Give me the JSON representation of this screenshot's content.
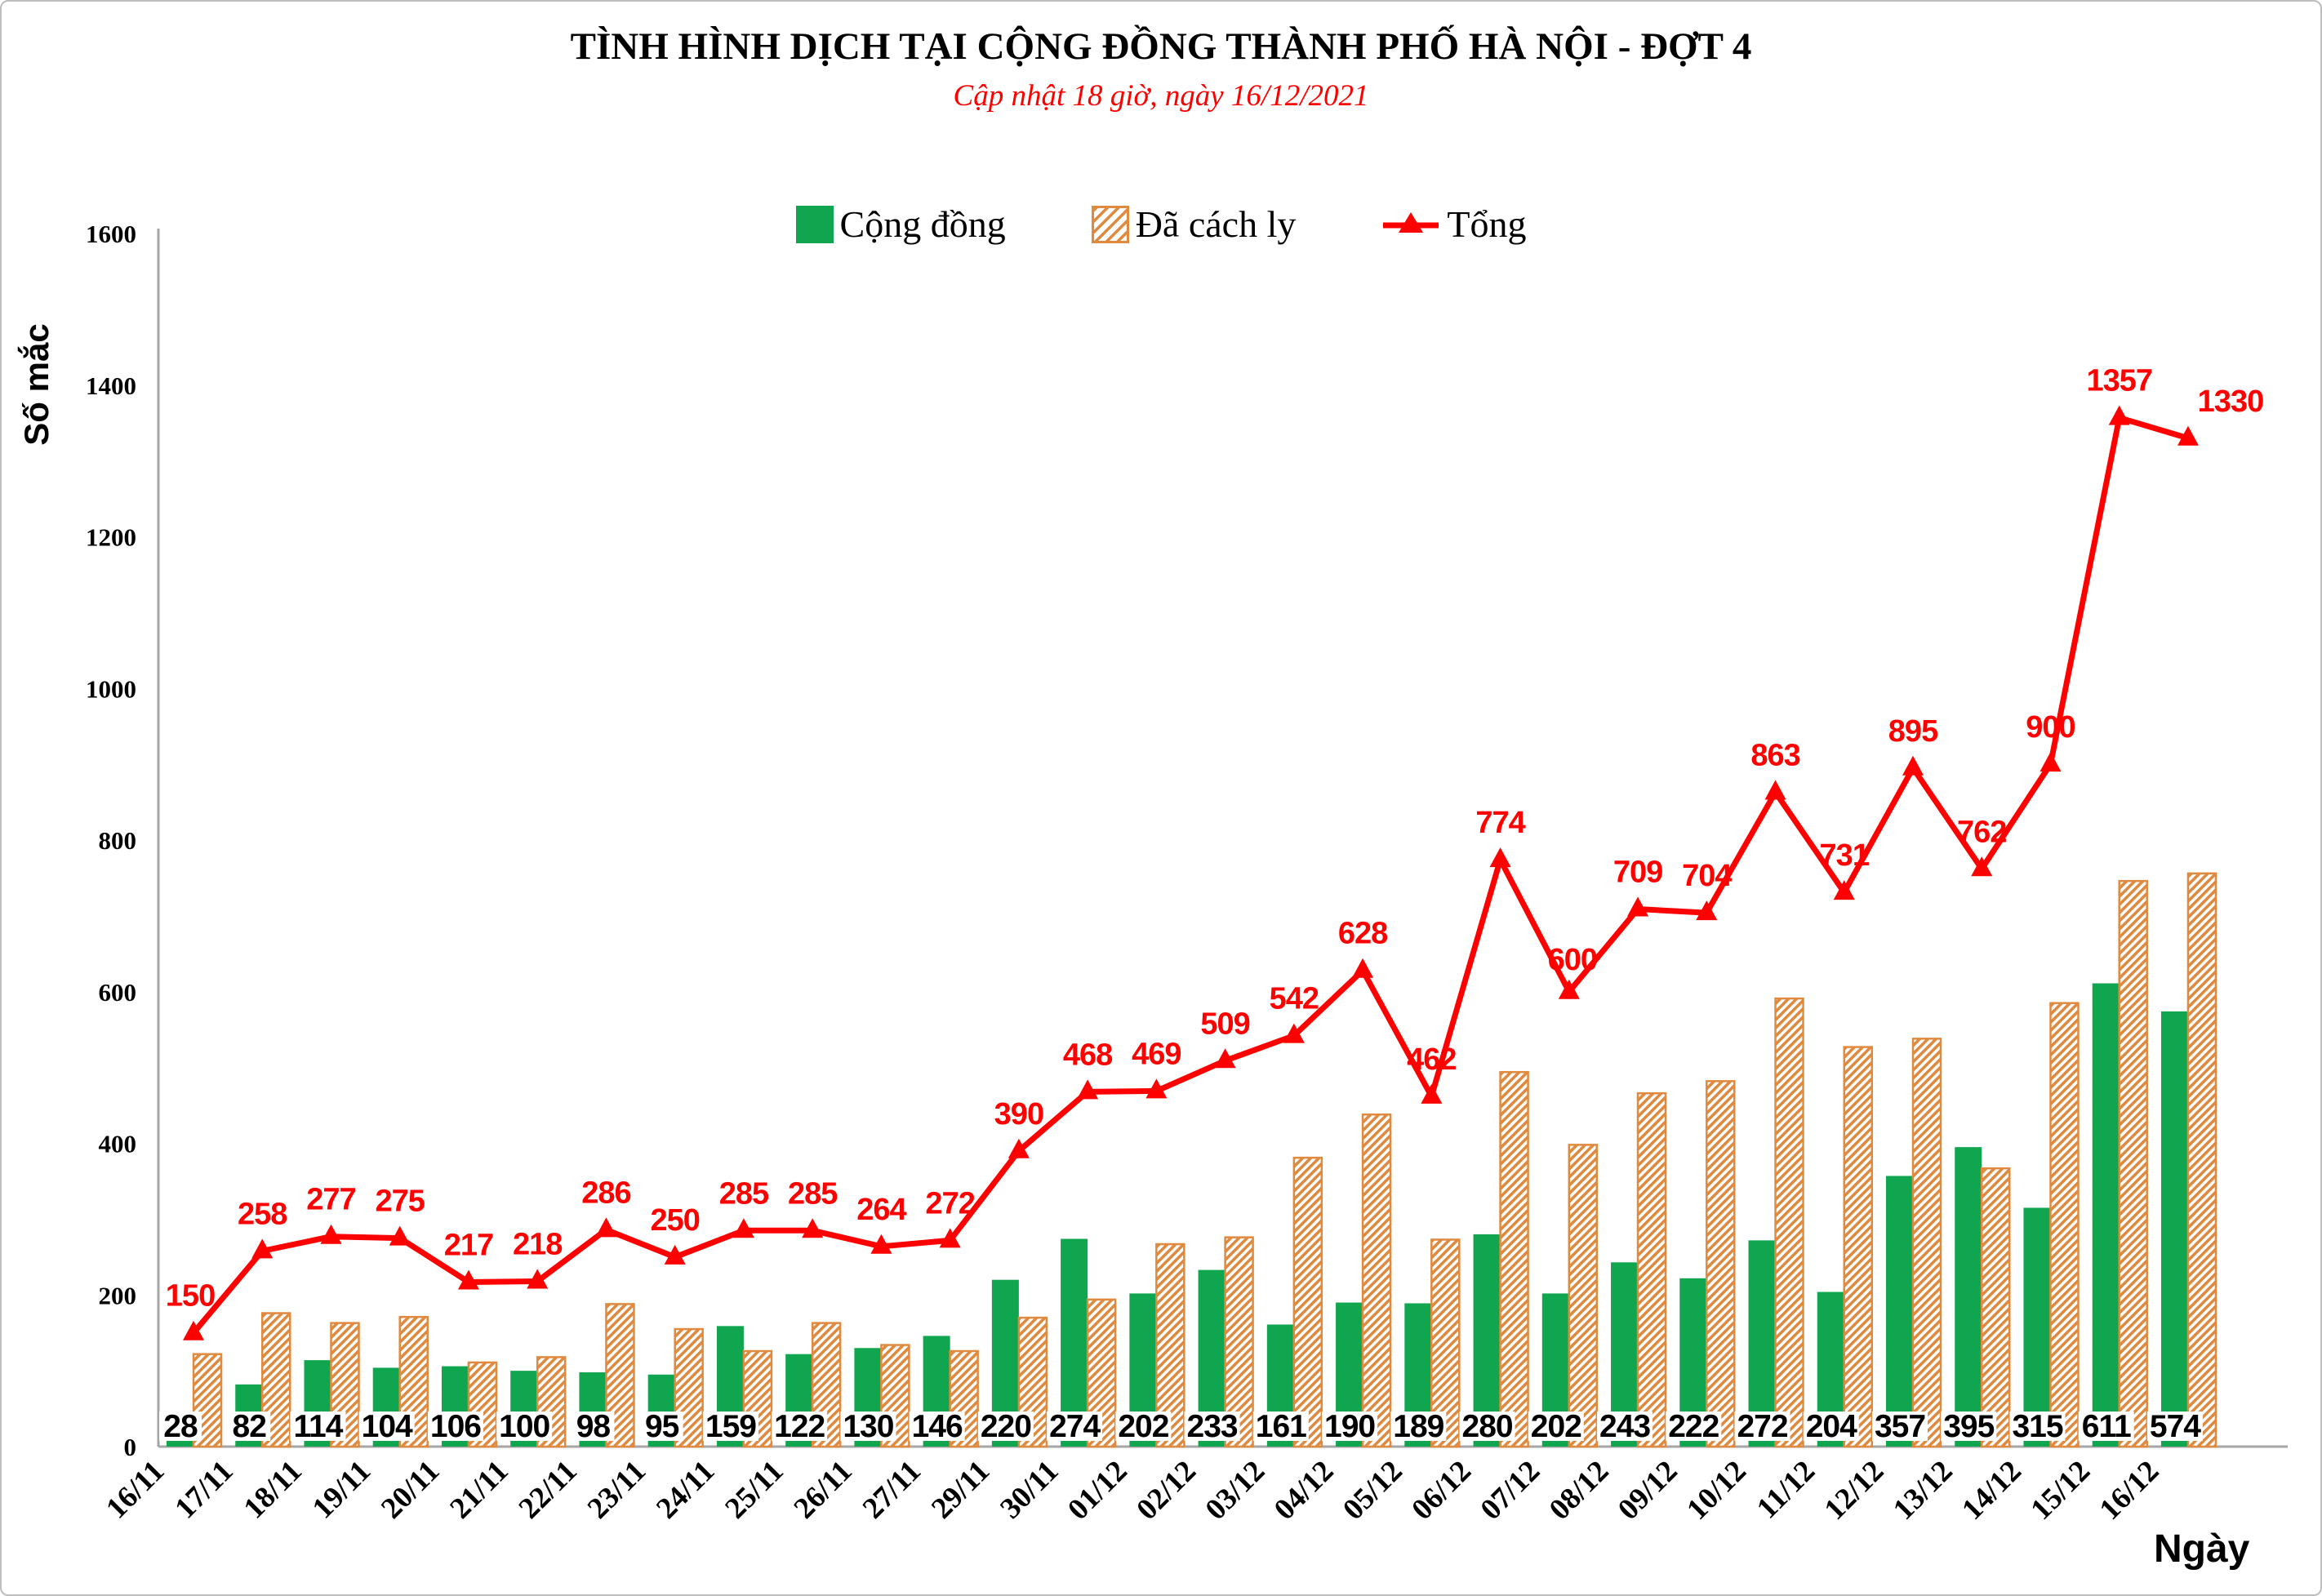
{
  "header": {
    "title": "TÌNH HÌNH DỊCH TẠI CỘNG ĐỒNG THÀNH PHỐ HÀ NỘI - ĐỢT 4",
    "subtitle": "Cập nhật 18 giờ, ngày 16/12/2021"
  },
  "legend": {
    "items": [
      {
        "label": "Cộng đồng",
        "swatch": "solid-green-square"
      },
      {
        "label": "Đã cách ly",
        "swatch": "orange-hatched-square"
      },
      {
        "label": "Tổng",
        "swatch": "red-line-with-triangle-marker"
      }
    ]
  },
  "axes": {
    "y_label": "Số mắc",
    "x_label": "Ngày"
  },
  "chart_data": {
    "type": "bar",
    "subtype": "grouped-bars-with-line-overlay",
    "title": "TÌNH HÌNH DỊCH TẠI CỘNG ĐỒNG THÀNH PHỐ HÀ NỘI - ĐỢT 4",
    "subtitle": "Cập nhật 18 giờ, ngày 16/12/2021",
    "xlabel": "Ngày",
    "ylabel": "Số mắc",
    "ylim": [
      0,
      1600
    ],
    "ytick_step": 200,
    "grid": false,
    "legend_position": "top",
    "categories": [
      "16/11",
      "17/11",
      "18/11",
      "19/11",
      "20/11",
      "21/11",
      "22/11",
      "23/11",
      "24/11",
      "25/11",
      "26/11",
      "27/11",
      "29/11",
      "30/11",
      "01/12",
      "02/12",
      "03/12",
      "04/12",
      "05/12",
      "06/12",
      "07/12",
      "08/12",
      "09/12",
      "10/12",
      "11/12",
      "12/12",
      "13/12",
      "14/12",
      "15/12",
      "16/12"
    ],
    "series": [
      {
        "name": "Cộng đồng",
        "type": "bar",
        "style": "solid",
        "color": "#10A64F",
        "value_labels_shown": true,
        "values": [
          28,
          82,
          114,
          104,
          106,
          100,
          98,
          95,
          159,
          122,
          130,
          146,
          220,
          274,
          202,
          233,
          161,
          190,
          189,
          280,
          202,
          243,
          222,
          272,
          204,
          357,
          395,
          315,
          611,
          574
        ]
      },
      {
        "name": "Đã cách ly",
        "type": "bar",
        "style": "hatched",
        "color": "#E08A40",
        "value_labels_shown": false,
        "values": [
          122,
          176,
          163,
          171,
          111,
          118,
          188,
          155,
          126,
          163,
          134,
          126,
          170,
          194,
          267,
          276,
          381,
          438,
          273,
          494,
          398,
          466,
          482,
          591,
          527,
          538,
          367,
          585,
          746,
          756
        ]
      },
      {
        "name": "Tổng",
        "type": "line",
        "marker": "triangle-up",
        "color": "#FF0000",
        "value_labels_shown": true,
        "values": [
          150,
          258,
          277,
          275,
          217,
          218,
          286,
          250,
          285,
          285,
          264,
          272,
          390,
          468,
          469,
          509,
          542,
          628,
          462,
          774,
          600,
          709,
          704,
          863,
          731,
          895,
          762,
          900,
          1357,
          1330
        ]
      }
    ],
    "line_label_offsets": {
      "0": [
        -4,
        0
      ],
      "20": [
        4,
        6
      ],
      "29": [
        52,
        0
      ]
    },
    "colors": {
      "community_green": "#10A64F",
      "quarantine_orange": "#E08A40",
      "total_red": "#FF0000",
      "axis_gray": "#A6A6A6",
      "text_black": "#000000"
    }
  }
}
